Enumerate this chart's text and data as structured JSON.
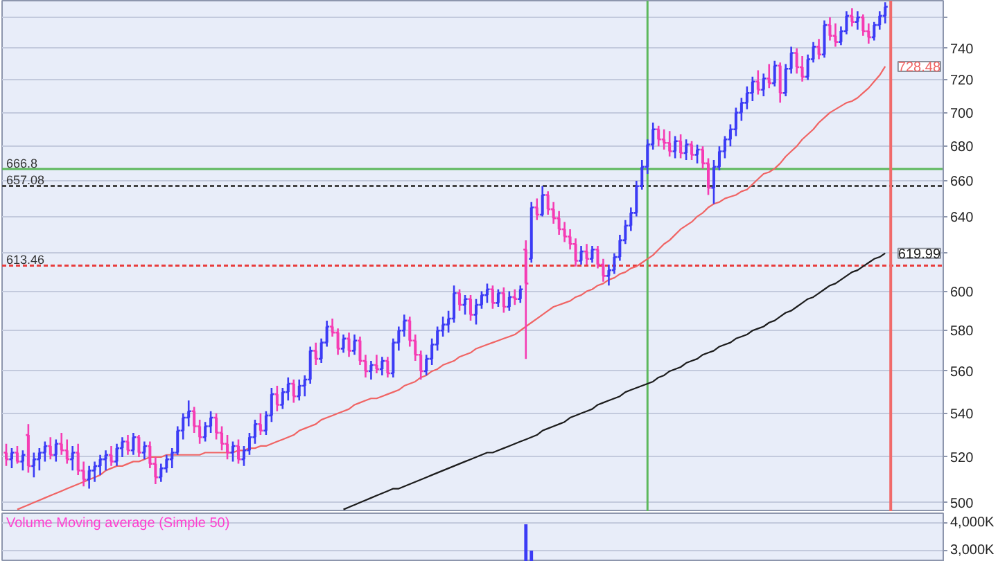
{
  "chart_data": [
    {
      "type": "candlestick",
      "log": true,
      "grid": "y",
      "tick_labels": "y",
      "categories": [
        null,
        null,
        null,
        null,
        null,
        null,
        null,
        null,
        null,
        null,
        null,
        null,
        null,
        null,
        null,
        null,
        null,
        null,
        null,
        null,
        null,
        null,
        null,
        null,
        null,
        null,
        null,
        null,
        null,
        null,
        null,
        null,
        null,
        null,
        null,
        null,
        null,
        null,
        null,
        null,
        null,
        null,
        null,
        null,
        null,
        null,
        null,
        null,
        null,
        null,
        null,
        null,
        null,
        null,
        null,
        null,
        null,
        null,
        null,
        null,
        null,
        null,
        null,
        null,
        null,
        null,
        null,
        null,
        null,
        null,
        null,
        null,
        null,
        null,
        null,
        null,
        null,
        null,
        null,
        null,
        null,
        null,
        null,
        null,
        null,
        null,
        null,
        null,
        null,
        null,
        null,
        null,
        null,
        null,
        null,
        null,
        null,
        null,
        null,
        null,
        null,
        null,
        null,
        null,
        null,
        null,
        null,
        null,
        null,
        null,
        null,
        null,
        null,
        null,
        null,
        null,
        null,
        null,
        null,
        null,
        null,
        null,
        null,
        null,
        null,
        null,
        null,
        null,
        null,
        null,
        null,
        null,
        null,
        null,
        null,
        null,
        null,
        null,
        null,
        null,
        null,
        null,
        null,
        null,
        null,
        null,
        null,
        null,
        null,
        null,
        null,
        null,
        null,
        null,
        null,
        null,
        null,
        null,
        null,
        null,
        null,
        null,
        null,
        null,
        null,
        null,
        null,
        null,
        null,
        null
      ],
      "ohlc": [
        [
          522,
          526,
          516,
          519
        ],
        [
          519,
          524,
          515,
          522
        ],
        [
          522,
          525,
          517,
          518
        ],
        [
          518,
          523,
          514,
          521
        ],
        [
          530,
          535,
          513,
          516
        ],
        [
          516,
          522,
          511,
          519
        ],
        [
          519,
          524,
          514,
          522
        ],
        [
          522,
          527,
          518,
          525
        ],
        [
          525,
          529,
          519,
          521
        ],
        [
          521,
          528,
          518,
          526
        ],
        [
          526,
          531,
          521,
          523
        ],
        [
          523,
          528,
          517,
          519
        ],
        [
          519,
          525,
          514,
          522
        ],
        [
          522,
          526,
          512,
          514
        ],
        [
          514,
          518,
          507,
          510
        ],
        [
          510,
          516,
          506,
          514
        ],
        [
          514,
          518,
          509,
          516
        ],
        [
          516,
          521,
          512,
          519
        ],
        [
          519,
          523,
          514,
          521
        ],
        [
          521,
          525,
          516,
          518
        ],
        [
          518,
          526,
          516,
          524
        ],
        [
          524,
          529,
          520,
          527
        ],
        [
          527,
          530,
          521,
          523
        ],
        [
          523,
          531,
          521,
          529
        ],
        [
          529,
          530,
          520,
          522
        ],
        [
          522,
          527,
          519,
          525
        ],
        [
          525,
          527,
          515,
          517
        ],
        [
          517,
          520,
          508,
          511
        ],
        [
          511,
          517,
          509,
          515
        ],
        [
          515,
          521,
          513,
          519
        ],
        [
          519,
          524,
          515,
          522
        ],
        [
          522,
          534,
          521,
          532
        ],
        [
          532,
          540,
          528,
          538
        ],
        [
          538,
          546,
          534,
          541
        ],
        [
          541,
          543,
          531,
          534
        ],
        [
          534,
          537,
          526,
          529
        ],
        [
          529,
          536,
          527,
          534
        ],
        [
          534,
          541,
          531,
          538
        ],
        [
          538,
          540,
          528,
          531
        ],
        [
          531,
          534,
          523,
          526
        ],
        [
          526,
          530,
          519,
          522
        ],
        [
          522,
          527,
          518,
          525
        ],
        [
          525,
          528,
          517,
          519
        ],
        [
          519,
          525,
          516,
          523
        ],
        [
          523,
          531,
          521,
          529
        ],
        [
          529,
          537,
          526,
          535
        ],
        [
          535,
          540,
          530,
          532
        ],
        [
          532,
          541,
          530,
          539
        ],
        [
          539,
          552,
          536,
          549
        ],
        [
          549,
          553,
          541,
          544
        ],
        [
          544,
          552,
          542,
          550
        ],
        [
          550,
          557,
          546,
          554
        ],
        [
          554,
          556,
          545,
          548
        ],
        [
          548,
          556,
          546,
          553
        ],
        [
          553,
          558,
          548,
          556
        ],
        [
          556,
          572,
          554,
          570
        ],
        [
          570,
          574,
          563,
          566
        ],
        [
          566,
          576,
          564,
          574
        ],
        [
          574,
          585,
          572,
          582
        ],
        [
          582,
          586,
          577,
          579
        ],
        [
          579,
          581,
          568,
          571
        ],
        [
          571,
          578,
          569,
          576
        ],
        [
          576,
          579,
          567,
          570
        ],
        [
          570,
          578,
          568,
          575
        ],
        [
          575,
          577,
          563,
          565
        ],
        [
          565,
          568,
          557,
          560
        ],
        [
          560,
          565,
          556,
          563
        ],
        [
          563,
          568,
          559,
          561
        ],
        [
          561,
          567,
          558,
          565
        ],
        [
          565,
          567,
          557,
          559
        ],
        [
          559,
          576,
          557,
          574
        ],
        [
          574,
          582,
          570,
          580
        ],
        [
          580,
          588,
          577,
          585
        ],
        [
          585,
          587,
          572,
          575
        ],
        [
          575,
          578,
          565,
          568
        ],
        [
          568,
          570,
          556,
          560
        ],
        [
          560,
          568,
          558,
          566
        ],
        [
          566,
          576,
          563,
          573
        ],
        [
          573,
          582,
          570,
          580
        ],
        [
          580,
          587,
          577,
          583
        ],
        [
          583,
          590,
          579,
          586
        ],
        [
          586,
          603,
          584,
          599
        ],
        [
          599,
          601,
          590,
          593
        ],
        [
          593,
          598,
          588,
          596
        ],
        [
          596,
          598,
          585,
          588
        ],
        [
          588,
          596,
          583,
          593
        ],
        [
          593,
          600,
          591,
          598
        ],
        [
          598,
          604,
          594,
          601
        ],
        [
          601,
          603,
          591,
          594
        ],
        [
          594,
          601,
          592,
          599
        ],
        [
          599,
          602,
          589,
          592
        ],
        [
          592,
          600,
          590,
          597
        ],
        [
          597,
          601,
          593,
          596
        ],
        [
          596,
          603,
          594,
          601
        ],
        [
          622,
          627,
          566,
          604
        ],
        [
          617,
          648,
          615,
          645
        ],
        [
          645,
          650,
          638,
          641
        ],
        [
          641,
          657,
          640,
          652
        ],
        [
          652,
          654,
          641,
          644
        ],
        [
          644,
          648,
          636,
          639
        ],
        [
          639,
          643,
          630,
          633
        ],
        [
          633,
          637,
          626,
          629
        ],
        [
          629,
          633,
          622,
          625
        ],
        [
          625,
          628,
          613,
          616
        ],
        [
          616,
          624,
          614,
          621
        ],
        [
          621,
          625,
          614,
          617
        ],
        [
          617,
          624,
          615,
          622
        ],
        [
          622,
          624,
          612,
          614
        ],
        [
          614,
          617,
          605,
          608
        ],
        [
          608,
          614,
          603,
          611
        ],
        [
          611,
          620,
          609,
          618
        ],
        [
          618,
          630,
          616,
          627
        ],
        [
          627,
          638,
          625,
          635
        ],
        [
          635,
          645,
          632,
          642
        ],
        [
          642,
          660,
          640,
          657
        ],
        [
          657,
          672,
          655,
          668
        ],
        [
          668,
          684,
          664,
          681
        ],
        [
          681,
          694,
          678,
          690
        ],
        [
          690,
          692,
          680,
          684
        ],
        [
          684,
          690,
          678,
          682
        ],
        [
          682,
          689,
          674,
          677
        ],
        [
          677,
          686,
          673,
          683
        ],
        [
          683,
          687,
          673,
          676
        ],
        [
          676,
          684,
          672,
          681
        ],
        [
          681,
          683,
          672,
          675
        ],
        [
          675,
          681,
          670,
          678
        ],
        [
          678,
          680,
          667,
          670
        ],
        [
          670,
          673,
          652,
          656
        ],
        [
          656,
          672,
          647,
          668
        ],
        [
          668,
          680,
          666,
          677
        ],
        [
          677,
          686,
          673,
          684
        ],
        [
          684,
          693,
          680,
          690
        ],
        [
          690,
          703,
          686,
          700
        ],
        [
          700,
          709,
          695,
          706
        ],
        [
          706,
          716,
          702,
          712
        ],
        [
          712,
          722,
          707,
          719
        ],
        [
          719,
          726,
          711,
          714
        ],
        [
          714,
          724,
          710,
          721
        ],
        [
          721,
          730,
          715,
          718
        ],
        [
          718,
          732,
          716,
          729
        ],
        [
          729,
          731,
          706,
          712
        ],
        [
          712,
          730,
          710,
          727
        ],
        [
          727,
          741,
          724,
          737
        ],
        [
          737,
          740,
          724,
          728
        ],
        [
          728,
          735,
          719,
          722
        ],
        [
          722,
          736,
          720,
          733
        ],
        [
          733,
          744,
          731,
          741
        ],
        [
          741,
          746,
          733,
          736
        ],
        [
          736,
          758,
          734,
          755
        ],
        [
          755,
          760,
          745,
          748
        ],
        [
          748,
          756,
          741,
          744
        ],
        [
          744,
          754,
          742,
          751
        ],
        [
          751,
          764,
          749,
          761
        ],
        [
          761,
          766,
          754,
          757
        ],
        [
          757,
          764,
          752,
          760
        ],
        [
          760,
          762,
          748,
          751
        ],
        [
          751,
          756,
          743,
          747
        ],
        [
          747,
          757,
          745,
          755
        ],
        [
          755,
          764,
          752,
          761
        ],
        [
          761,
          770,
          756,
          767
        ],
        null,
        null,
        null,
        null,
        null,
        null,
        null,
        null,
        null,
        null
      ],
      "colors": [
        "#f53cb4",
        "#3b3bf5",
        "#f53cb4",
        "#3b3bf5",
        "#f53cb4",
        "#3b3bf5",
        "#3b3bf5",
        "#3b3bf5",
        "#f53cb4",
        "#3b3bf5",
        "#f53cb4",
        "#f53cb4",
        "#3b3bf5",
        "#f53cb4",
        "#f53cb4",
        "#3b3bf5",
        "#3b3bf5",
        "#3b3bf5",
        "#3b3bf5",
        "#f53cb4",
        "#3b3bf5",
        "#3b3bf5",
        "#f53cb4",
        "#3b3bf5",
        "#f53cb4",
        "#3b3bf5",
        "#f53cb4",
        "#f53cb4",
        "#3b3bf5",
        "#3b3bf5",
        "#3b3bf5",
        "#3b3bf5",
        "#3b3bf5",
        "#3b3bf5",
        "#f53cb4",
        "#f53cb4",
        "#3b3bf5",
        "#3b3bf5",
        "#f53cb4",
        "#f53cb4",
        "#f53cb4",
        "#3b3bf5",
        "#f53cb4",
        "#3b3bf5",
        "#3b3bf5",
        "#3b3bf5",
        "#f53cb4",
        "#3b3bf5",
        "#3b3bf5",
        "#f53cb4",
        "#3b3bf5",
        "#3b3bf5",
        "#f53cb4",
        "#3b3bf5",
        "#3b3bf5",
        "#3b3bf5",
        "#f53cb4",
        "#3b3bf5",
        "#3b3bf5",
        "#f53cb4",
        "#f53cb4",
        "#3b3bf5",
        "#f53cb4",
        "#3b3bf5",
        "#f53cb4",
        "#f53cb4",
        "#3b3bf5",
        "#f53cb4",
        "#3b3bf5",
        "#f53cb4",
        "#3b3bf5",
        "#3b3bf5",
        "#3b3bf5",
        "#f53cb4",
        "#f53cb4",
        "#f53cb4",
        "#3b3bf5",
        "#3b3bf5",
        "#3b3bf5",
        "#3b3bf5",
        "#3b3bf5",
        "#3b3bf5",
        "#f53cb4",
        "#3b3bf5",
        "#f53cb4",
        "#3b3bf5",
        "#3b3bf5",
        "#3b3bf5",
        "#f53cb4",
        "#3b3bf5",
        "#f53cb4",
        "#3b3bf5",
        "#f53cb4",
        "#3b3bf5",
        "#f53cb4",
        "#3b3bf5",
        "#f53cb4",
        "#3b3bf5",
        "#f53cb4",
        "#f53cb4",
        "#f53cb4",
        "#f53cb4",
        "#f53cb4",
        "#f53cb4",
        "#3b3bf5",
        "#f53cb4",
        "#3b3bf5",
        "#f53cb4",
        "#f53cb4",
        "#3b3bf5",
        "#3b3bf5",
        "#3b3bf5",
        "#3b3bf5",
        "#3b3bf5",
        "#3b3bf5",
        "#3b3bf5",
        "#3b3bf5",
        "#3b3bf5",
        "#f53cb4",
        "#f53cb4",
        "#f53cb4",
        "#3b3bf5",
        "#f53cb4",
        "#3b3bf5",
        "#f53cb4",
        "#3b3bf5",
        "#f53cb4",
        "#f53cb4",
        "#3b3bf5",
        "#3b3bf5",
        "#3b3bf5",
        "#3b3bf5",
        "#3b3bf5",
        "#3b3bf5",
        "#3b3bf5",
        "#3b3bf5",
        "#f53cb4",
        "#3b3bf5",
        "#f53cb4",
        "#3b3bf5",
        "#f53cb4",
        "#3b3bf5",
        "#3b3bf5",
        "#f53cb4",
        "#f53cb4",
        "#3b3bf5",
        "#3b3bf5",
        "#f53cb4",
        "#3b3bf5",
        "#f53cb4",
        "#f53cb4",
        "#3b3bf5",
        "#3b3bf5",
        "#f53cb4",
        "#3b3bf5",
        "#f53cb4",
        "#f53cb4",
        "#3b3bf5",
        "#3b3bf5",
        "#3b3bf5",
        null,
        null,
        null,
        null,
        null,
        null,
        null,
        null,
        null,
        null
      ],
      "series": [
        {
          "type": "line",
          "color": "#f06464",
          "values": [
            null,
            null,
            497,
            498,
            499,
            500,
            501,
            502,
            503,
            504,
            505,
            506,
            507,
            508,
            509,
            510,
            511,
            512,
            514,
            515,
            516,
            516,
            517,
            518,
            518,
            519,
            520,
            520,
            520,
            521,
            521,
            521,
            521,
            521,
            521,
            521,
            522,
            522,
            522,
            522,
            522,
            522,
            523,
            523,
            524,
            524,
            525,
            525,
            526,
            527,
            528,
            529,
            530,
            532,
            533,
            534,
            535,
            537,
            538,
            539,
            540,
            541,
            542,
            544,
            545,
            546,
            547,
            547,
            548,
            549,
            550,
            551,
            553,
            554,
            555,
            557,
            558,
            560,
            561,
            563,
            564,
            565,
            567,
            568,
            569,
            571,
            572,
            573,
            574,
            575,
            576,
            577,
            578,
            580,
            582,
            584,
            586,
            588,
            590,
            592,
            593,
            594,
            595,
            597,
            598,
            600,
            601,
            603,
            604,
            606,
            607,
            609,
            610,
            612,
            613,
            615,
            617,
            619,
            622,
            625,
            627,
            630,
            633,
            635,
            637,
            640,
            642,
            645,
            647,
            648,
            650,
            651,
            652,
            654,
            655,
            658,
            661,
            664,
            665,
            667,
            670,
            674,
            677,
            680,
            684,
            687,
            690,
            694,
            697,
            700,
            702,
            704,
            706,
            707,
            709,
            712,
            715,
            719,
            723,
            728.48,
            null,
            null,
            null,
            null,
            null,
            null,
            null,
            null,
            null,
            null
          ],
          "value_labels": [
            null,
            null,
            null,
            null,
            null,
            null,
            null,
            null,
            null,
            null,
            null,
            null,
            null,
            null,
            null,
            null,
            null,
            null,
            null,
            null,
            null,
            null,
            null,
            null,
            null,
            null,
            null,
            null,
            null,
            null,
            null,
            null,
            null,
            null,
            null,
            null,
            null,
            null,
            null,
            null,
            null,
            null,
            null,
            null,
            null,
            null,
            null,
            null,
            null,
            null,
            null,
            null,
            null,
            null,
            null,
            null,
            null,
            null,
            null,
            null,
            null,
            null,
            null,
            null,
            null,
            null,
            null,
            null,
            null,
            null,
            null,
            null,
            null,
            null,
            null,
            null,
            null,
            null,
            null,
            null,
            null,
            null,
            null,
            null,
            null,
            null,
            null,
            null,
            null,
            null,
            null,
            null,
            null,
            null,
            null,
            null,
            null,
            null,
            null,
            null,
            null,
            null,
            null,
            null,
            null,
            null,
            null,
            null,
            null,
            null,
            null,
            null,
            null,
            null,
            null,
            null,
            null,
            null,
            null,
            null,
            null,
            null,
            null,
            null,
            null,
            null,
            null,
            null,
            null,
            null,
            null,
            null,
            null,
            null,
            null,
            null,
            null,
            null,
            null,
            null,
            null,
            null,
            null,
            null,
            null,
            null,
            null,
            null,
            null,
            null,
            null,
            null,
            null,
            null,
            null,
            null,
            null,
            null,
            null,
            "728.48",
            null,
            null,
            null,
            null,
            null,
            null,
            null,
            null,
            null,
            null
          ]
        },
        {
          "type": "line",
          "color": "#1c1c1c",
          "values": [
            null,
            null,
            null,
            null,
            null,
            null,
            null,
            null,
            null,
            null,
            null,
            null,
            null,
            null,
            null,
            null,
            null,
            null,
            null,
            null,
            null,
            null,
            null,
            null,
            null,
            null,
            null,
            null,
            null,
            null,
            null,
            null,
            null,
            null,
            null,
            null,
            null,
            null,
            null,
            null,
            null,
            null,
            null,
            null,
            null,
            null,
            null,
            null,
            null,
            null,
            null,
            null,
            null,
            null,
            null,
            null,
            null,
            null,
            null,
            null,
            null,
            497,
            498,
            499,
            500,
            501,
            502,
            503,
            504,
            505,
            506,
            506,
            507,
            508,
            509,
            510,
            511,
            512,
            513,
            514,
            515,
            516,
            517,
            518,
            519,
            520,
            521,
            522,
            522,
            523,
            524,
            525,
            526,
            527,
            528,
            529,
            530,
            532,
            533,
            534,
            535,
            536,
            538,
            539,
            540,
            541,
            542,
            544,
            545,
            546,
            547,
            548,
            550,
            551,
            552,
            553,
            554,
            555,
            557,
            558,
            560,
            561,
            562,
            564,
            565,
            566,
            568,
            569,
            570,
            572,
            573,
            574,
            576,
            577,
            578,
            580,
            581,
            582,
            584,
            585,
            587,
            589,
            590,
            592,
            594,
            596,
            597,
            599,
            601,
            603,
            604,
            606,
            608,
            610,
            611,
            613,
            615,
            617,
            618,
            619.99,
            null,
            null,
            null,
            null,
            null,
            null,
            null,
            null,
            null,
            null
          ],
          "value_labels": [
            null,
            null,
            null,
            null,
            null,
            null,
            null,
            null,
            null,
            null,
            null,
            null,
            null,
            null,
            null,
            null,
            null,
            null,
            null,
            null,
            null,
            null,
            null,
            null,
            null,
            null,
            null,
            null,
            null,
            null,
            null,
            null,
            null,
            null,
            null,
            null,
            null,
            null,
            null,
            null,
            null,
            null,
            null,
            null,
            null,
            null,
            null,
            null,
            null,
            null,
            null,
            null,
            null,
            null,
            null,
            null,
            null,
            null,
            null,
            null,
            null,
            null,
            null,
            null,
            null,
            null,
            null,
            null,
            null,
            null,
            null,
            null,
            null,
            null,
            null,
            null,
            null,
            null,
            null,
            null,
            null,
            null,
            null,
            null,
            null,
            null,
            null,
            null,
            null,
            null,
            null,
            null,
            null,
            null,
            null,
            null,
            null,
            null,
            null,
            null,
            null,
            null,
            null,
            null,
            null,
            null,
            null,
            null,
            null,
            null,
            null,
            null,
            null,
            null,
            null,
            null,
            null,
            null,
            null,
            null,
            null,
            null,
            null,
            null,
            null,
            null,
            null,
            null,
            null,
            null,
            null,
            null,
            null,
            null,
            null,
            null,
            null,
            null,
            null,
            null,
            null,
            null,
            null,
            null,
            null,
            null,
            null,
            null,
            null,
            null,
            null,
            null,
            null,
            null,
            null,
            null,
            null,
            null,
            null,
            "619.99",
            null,
            null,
            null,
            null,
            null,
            null,
            null,
            null,
            null,
            null
          ]
        }
      ],
      "ylim": [
        496,
        771
      ],
      "yticks": [
        500,
        520,
        540,
        560,
        580,
        600,
        {
          "value": 620,
          "label": null
        },
        640,
        660,
        680,
        700,
        720,
        740,
        {
          "value": 760,
          "label": null
        }
      ],
      "ref_lines": [
        {
          "axis": "y",
          "value": 666.8,
          "label": "666.8",
          "color": "#5cb85c",
          "line_style": "solid"
        },
        {
          "axis": "y",
          "value": 657.08,
          "label": "657.08",
          "color": "#444444",
          "line_style": "dashed"
        },
        {
          "axis": "y",
          "value": 613.46,
          "label": "613.46",
          "color": "#e83c3c",
          "line_style": "dashed"
        }
      ]
    },
    {
      "type": "bar",
      "title": "Volume Moving average (Simple 50)",
      "grid": "y",
      "tick_labels": "y",
      "color": "#3b3bf5",
      "categories": [
        null,
        null,
        null,
        null,
        null,
        null,
        null,
        null,
        null,
        null,
        null,
        null,
        null,
        null,
        null,
        null,
        null,
        null,
        null,
        null,
        null,
        null,
        null,
        null,
        null,
        null,
        null,
        null,
        null,
        null,
        null,
        null,
        null,
        null,
        null,
        null,
        null,
        null,
        null,
        null,
        null,
        null,
        null,
        null,
        null,
        null,
        null,
        null,
        null,
        null,
        null,
        null,
        null,
        null,
        null,
        null,
        null,
        null,
        null,
        null,
        null,
        null,
        null,
        null,
        null,
        null,
        null,
        null,
        null,
        null,
        null,
        null,
        null,
        null,
        null,
        null,
        null,
        null,
        null,
        null,
        null,
        null,
        null,
        null,
        null,
        null,
        null,
        null,
        null,
        null,
        null,
        null,
        null,
        null,
        null,
        null,
        null,
        null,
        null,
        null,
        null,
        null,
        null,
        null,
        null,
        null,
        null,
        null,
        null,
        null,
        null,
        null,
        null,
        null,
        null,
        null,
        null,
        null,
        null,
        null,
        null,
        null,
        null,
        null,
        null,
        null,
        null,
        null,
        null,
        null,
        null,
        null,
        null,
        null,
        null,
        null,
        null,
        null,
        null,
        null,
        null,
        null,
        null,
        null,
        null,
        null,
        null,
        null,
        null,
        null,
        null,
        null,
        null,
        null,
        null,
        null,
        null,
        null,
        null,
        null,
        null,
        null,
        null,
        null,
        null,
        null,
        null,
        null,
        null,
        null
      ],
      "values": [
        null,
        null,
        null,
        null,
        null,
        null,
        null,
        null,
        null,
        null,
        null,
        null,
        null,
        null,
        null,
        null,
        null,
        null,
        null,
        null,
        null,
        null,
        null,
        null,
        null,
        null,
        null,
        null,
        null,
        null,
        null,
        null,
        null,
        null,
        null,
        null,
        null,
        null,
        null,
        null,
        null,
        null,
        null,
        null,
        null,
        null,
        null,
        null,
        null,
        null,
        null,
        null,
        null,
        null,
        null,
        null,
        null,
        null,
        null,
        null,
        null,
        null,
        null,
        null,
        null,
        null,
        null,
        null,
        null,
        null,
        null,
        null,
        null,
        null,
        null,
        null,
        null,
        null,
        null,
        null,
        null,
        null,
        null,
        null,
        null,
        null,
        null,
        null,
        null,
        null,
        null,
        null,
        null,
        null,
        3950,
        3000,
        null,
        null,
        null,
        null,
        null,
        null,
        null,
        null,
        null,
        null,
        null,
        null,
        null,
        null,
        null,
        null,
        null,
        null,
        null,
        null,
        null,
        null,
        null,
        null,
        null,
        null,
        null,
        null,
        null,
        null,
        null,
        null,
        null,
        null,
        null,
        null,
        null,
        null,
        null,
        null,
        null,
        null,
        null,
        null,
        null,
        null,
        null,
        null,
        null,
        null,
        null,
        null,
        null,
        null,
        null,
        null,
        null,
        null,
        null,
        null,
        null,
        null,
        null,
        null,
        null,
        null,
        null,
        null,
        null,
        null,
        null,
        null,
        null,
        null
      ],
      "ylim": [
        2600,
        4350
      ],
      "yticks": [
        {
          "value": 3000,
          "label": "3,000K"
        },
        {
          "value": 4000,
          "label": "4,000K"
        }
      ]
    }
  ]
}
